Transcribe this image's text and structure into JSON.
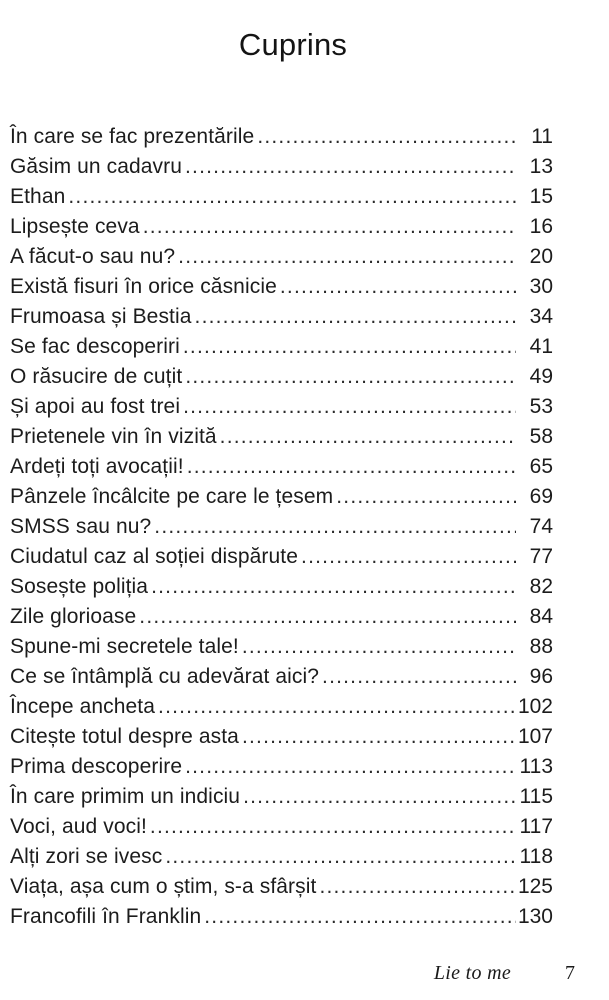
{
  "title": "Cuprins",
  "toc": {
    "entries": [
      {
        "title": "În care se fac prezentările",
        "page": "11"
      },
      {
        "title": "Găsim un cadavru",
        "page": "13"
      },
      {
        "title": "Ethan",
        "page": "15"
      },
      {
        "title": "Lipsește ceva",
        "page": "16"
      },
      {
        "title": "A făcut-o sau nu?",
        "page": "20"
      },
      {
        "title": "Există fisuri în orice căsnicie",
        "page": "30"
      },
      {
        "title": "Frumoasa și Bestia",
        "page": "34"
      },
      {
        "title": "Se fac descoperiri",
        "page": "41"
      },
      {
        "title": "O răsucire de cuțit",
        "page": "49"
      },
      {
        "title": "Și apoi au fost trei",
        "page": "53"
      },
      {
        "title": "Prietenele vin în vizită",
        "page": "58"
      },
      {
        "title": "Ardeți toți avocații!",
        "page": "65"
      },
      {
        "title": "Pânzele încâlcite pe care le țesem",
        "page": "69"
      },
      {
        "title": "SMSS sau nu?",
        "page": "74"
      },
      {
        "title": "Ciudatul caz al soției dispărute",
        "page": "77"
      },
      {
        "title": "Sosește poliția",
        "page": "82"
      },
      {
        "title": "Zile glorioase",
        "page": "84"
      },
      {
        "title": "Spune-mi secretele tale!",
        "page": "88"
      },
      {
        "title": "Ce se întâmplă cu adevărat aici?",
        "page": "96"
      },
      {
        "title": "Începe ancheta",
        "page": "102"
      },
      {
        "title": "Citește totul despre asta",
        "page": "107"
      },
      {
        "title": "Prima descoperire",
        "page": "113"
      },
      {
        "title": "În care primim un indiciu",
        "page": "115"
      },
      {
        "title": "Voci, aud voci!",
        "page": "117"
      },
      {
        "title": "Alți zori se ivesc",
        "page": "118"
      },
      {
        "title": "Viața, așa cum o știm, s-a sfârșit",
        "page": "125"
      },
      {
        "title": "Francofili în Franklin",
        "page": "130"
      }
    ]
  },
  "footer": {
    "book_title": "Lie to me",
    "page_number": "7"
  }
}
